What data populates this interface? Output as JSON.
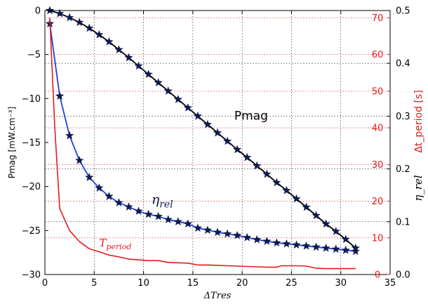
{
  "chart_data": {
    "type": "line",
    "xlabel": "ΔTres",
    "ylabel_left": "Pmag [mW.cm⁻³]",
    "ylabel_right_red": "Δt_period [s]",
    "ylabel_right_black": "η_rel",
    "xlim": [
      0,
      35
    ],
    "ylim_left": [
      -30,
      0
    ],
    "ylim_right_black": [
      0,
      0.5
    ],
    "ylim_right_red": [
      0,
      72
    ],
    "x_ticks": [
      "0",
      "5",
      "10",
      "15",
      "20",
      "25",
      "30",
      "35"
    ],
    "y_left_ticks": [
      "0",
      "−5",
      "−10",
      "−15",
      "−20",
      "−25",
      "−30"
    ],
    "y_right_black_ticks": [
      {
        "label": "0.5",
        "value": 0.5
      },
      {
        "label": "0.4",
        "value": 0.4
      },
      {
        "label": "0.3",
        "value": 0.3
      },
      {
        "label": "0.2",
        "value": 0.2
      },
      {
        "label": "0.1",
        "value": 0.1
      },
      {
        "label": "0.0",
        "value": 0.0
      }
    ],
    "y_right_red_ticks": [
      {
        "label": "70",
        "value": 70
      },
      {
        "label": "60",
        "value": 60
      },
      {
        "label": "50",
        "value": 50
      },
      {
        "label": "40",
        "value": 40
      },
      {
        "label": "30",
        "value": 30
      },
      {
        "label": "20",
        "value": 20
      },
      {
        "label": "10",
        "value": 10
      },
      {
        "label": "0",
        "value": 0
      }
    ],
    "grid": true,
    "colors": {
      "pmag": "#000000",
      "eta": "#1f3fd6",
      "marker": "#0d1a4d",
      "tperiod": "#e41a1c",
      "grid": "#000000",
      "grid_red": "#e41a1c"
    },
    "series": [
      {
        "name": "Pmag",
        "axis": "left",
        "color": "#000000",
        "markers": true,
        "x": [
          0.5,
          1.5,
          2.5,
          3.5,
          4.5,
          5.5,
          6.5,
          7.5,
          8.5,
          9.5,
          10.5,
          11.5,
          12.5,
          13.5,
          14.5,
          15.5,
          16.5,
          17.5,
          18.5,
          19.5,
          20.5,
          21.5,
          22.5,
          23.5,
          24.5,
          25.5,
          26.5,
          27.5,
          28.5,
          29.5,
          30.5,
          31.5
        ],
        "y": [
          0,
          -0.35,
          -0.8,
          -1.35,
          -2.0,
          -2.75,
          -3.55,
          -4.45,
          -5.35,
          -6.3,
          -7.25,
          -8.2,
          -9.15,
          -10.1,
          -11.05,
          -12.0,
          -12.95,
          -13.9,
          -14.85,
          -15.8,
          -16.7,
          -17.65,
          -18.6,
          -19.55,
          -20.45,
          -21.4,
          -22.35,
          -23.3,
          -24.25,
          -25.1,
          -26.0,
          -27.0
        ]
      },
      {
        "name": "η_rel",
        "axis": "right_black",
        "color": "#1f3fd6",
        "markers": true,
        "x": [
          0.5,
          1.5,
          2.5,
          3.5,
          4.5,
          5.5,
          6.5,
          7.5,
          8.5,
          9.5,
          10.5,
          11.5,
          12.5,
          13.5,
          14.5,
          15.5,
          16.5,
          17.5,
          18.5,
          19.5,
          20.5,
          21.5,
          22.5,
          23.5,
          24.5,
          25.5,
          26.5,
          27.5,
          28.5,
          29.5,
          30.5,
          31.5
        ],
        "y": [
          0.475,
          0.338,
          0.263,
          0.216,
          0.184,
          0.164,
          0.148,
          0.136,
          0.128,
          0.12,
          0.114,
          0.11,
          0.104,
          0.1,
          0.096,
          0.088,
          0.084,
          0.08,
          0.077,
          0.074,
          0.07,
          0.066,
          0.063,
          0.06,
          0.058,
          0.056,
          0.054,
          0.052,
          0.05,
          0.048,
          0.046,
          0.044
        ]
      },
      {
        "name": "T_period",
        "axis": "right_red",
        "color": "#e41a1c",
        "markers": false,
        "x": [
          0.5,
          1.0,
          1.5,
          2.0,
          2.5,
          3.0,
          3.5,
          4.0,
          4.5,
          5.5,
          6.5,
          7.5,
          8.5,
          9.5,
          10.5,
          11.5,
          12.5,
          13.5,
          14.5,
          15.5,
          16.5,
          17.5,
          18.5,
          19.5,
          20.5,
          21.5,
          22.5,
          23.5,
          24.0,
          24.5,
          25.5,
          26.5,
          27.5,
          28.5,
          29.5,
          30.5,
          31.5
        ],
        "y": [
          70,
          40,
          18,
          15,
          12,
          10.5,
          9,
          8,
          7,
          6.2,
          5.3,
          4.8,
          4.2,
          4.0,
          3.8,
          3.8,
          3.3,
          3.2,
          3.1,
          2.6,
          2.6,
          2.5,
          2.4,
          2.3,
          2.2,
          2.1,
          2.0,
          2.0,
          2.4,
          2.4,
          2.4,
          2.3,
          1.7,
          1.6,
          1.6,
          1.6,
          1.6
        ]
      }
    ],
    "annotations": [
      {
        "text": "Pmag",
        "x": 19.2,
        "y_left": -12.4
      },
      {
        "text": "η",
        "sub": "rel",
        "x": 10.8,
        "y_left": -22.0
      },
      {
        "text": "T",
        "sub": "period",
        "x": 5.5,
        "y_left": -26.8
      }
    ]
  }
}
